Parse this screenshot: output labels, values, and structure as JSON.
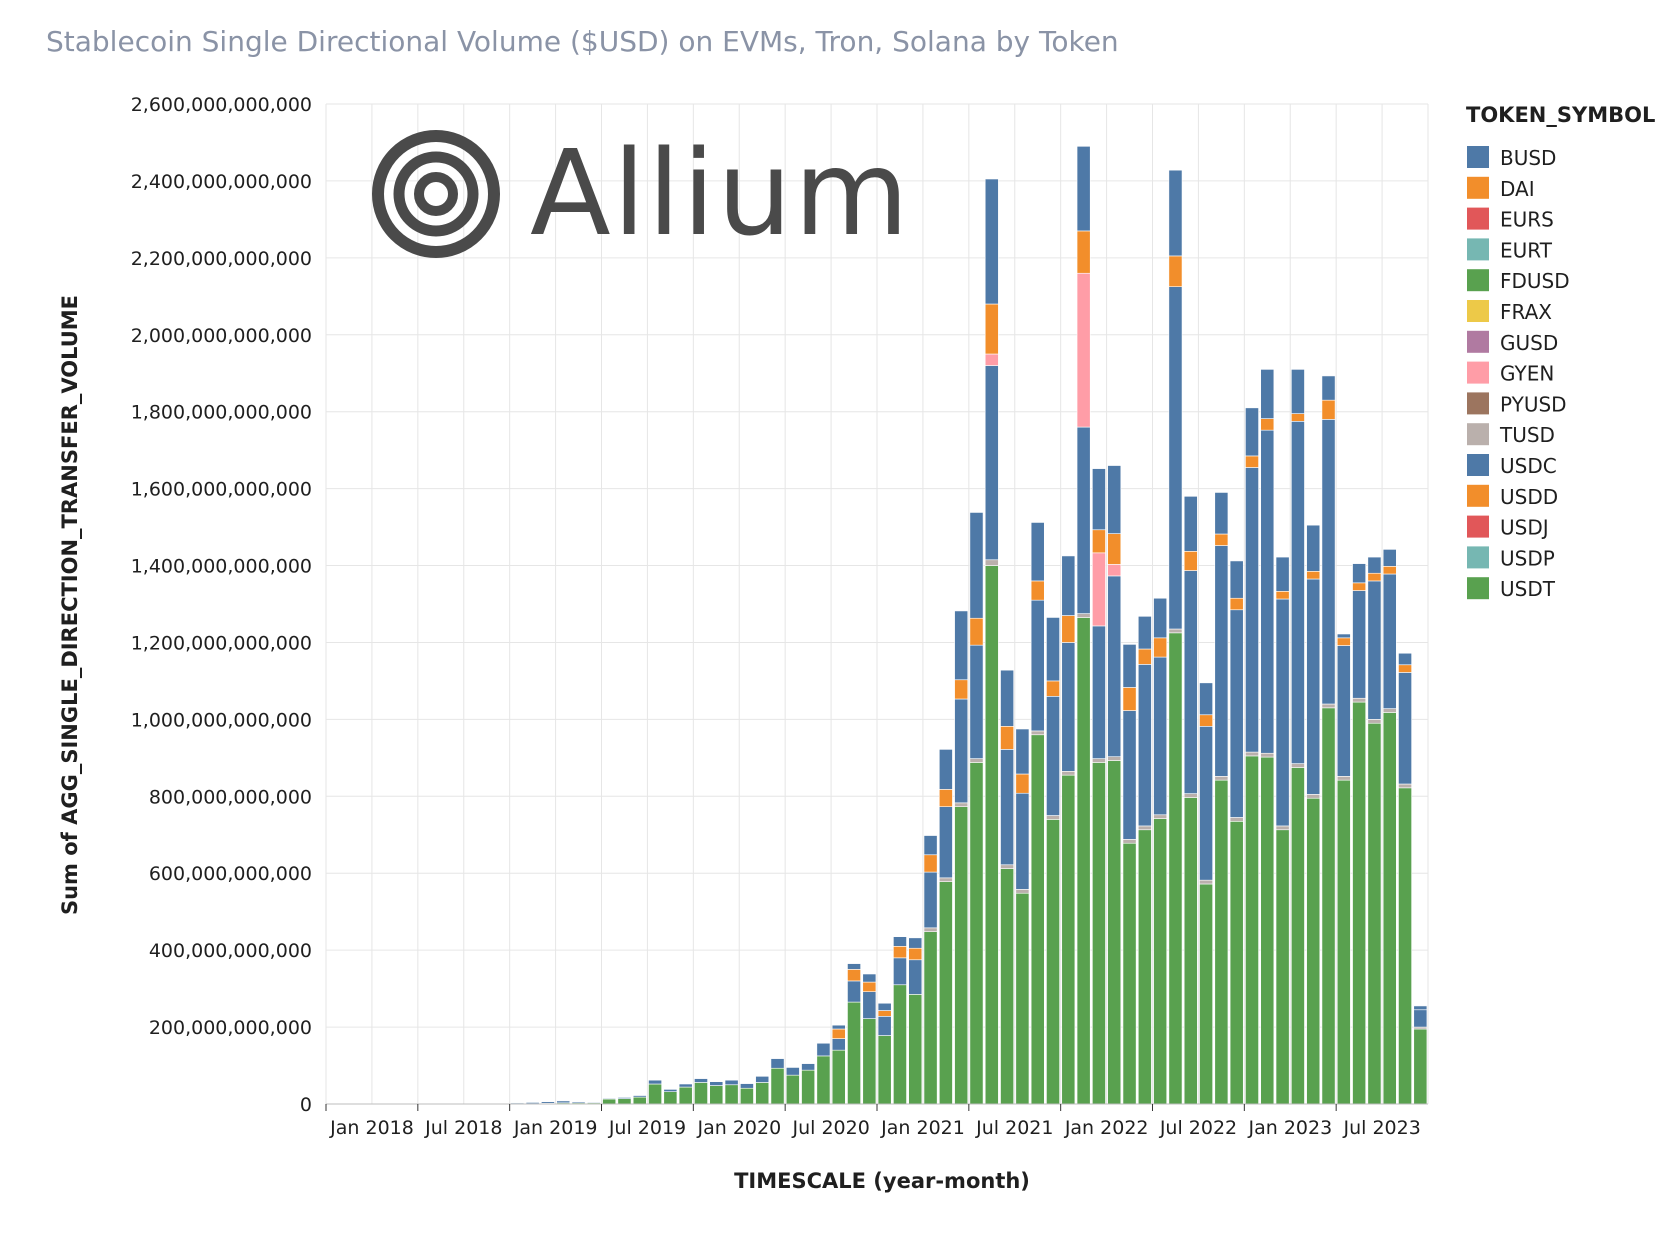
{
  "chart_data": {
    "type": "bar",
    "stacked": true,
    "title": "Stablecoin Single Directional Volume ($USD) on EVMs, Tron, Solana by Token",
    "xlabel": "TIMESCALE (year-month)",
    "ylabel": "Sum of AGG_SINGLE_DIRECTION_TRANSFER_VOLUME",
    "ylim": [
      0,
      2600000000000
    ],
    "grid": true,
    "legend_title": "TOKEN_SYMBOL",
    "legend_position": "right",
    "logo_text": "Allium",
    "x_start": "2018-01",
    "y_ticks": [
      {
        "value": 0,
        "label": "0"
      },
      {
        "value": 200000000000,
        "label": "200,000,000,000"
      },
      {
        "value": 400000000000,
        "label": "400,000,000,000"
      },
      {
        "value": 600000000000,
        "label": "600,000,000,000"
      },
      {
        "value": 800000000000,
        "label": "800,000,000,000"
      },
      {
        "value": 1000000000000,
        "label": "1,000,000,000,000"
      },
      {
        "value": 1200000000000,
        "label": "1,200,000,000,000"
      },
      {
        "value": 1400000000000,
        "label": "1,400,000,000,000"
      },
      {
        "value": 1600000000000,
        "label": "1,600,000,000,000"
      },
      {
        "value": 1800000000000,
        "label": "1,800,000,000,000"
      },
      {
        "value": 2000000000000,
        "label": "2,000,000,000,000"
      },
      {
        "value": 2200000000000,
        "label": "2,200,000,000,000"
      },
      {
        "value": 2400000000000,
        "label": "2,400,000,000,000"
      },
      {
        "value": 2600000000000,
        "label": "2,600,000,000,000"
      }
    ],
    "x_ticks": [
      {
        "month": "2018-01",
        "label": "Jan 2018"
      },
      {
        "month": "2018-07",
        "label": "Jul 2018"
      },
      {
        "month": "2019-01",
        "label": "Jan 2019"
      },
      {
        "month": "2019-07",
        "label": "Jul 2019"
      },
      {
        "month": "2020-01",
        "label": "Jan 2020"
      },
      {
        "month": "2020-07",
        "label": "Jul 2020"
      },
      {
        "month": "2021-01",
        "label": "Jan 2021"
      },
      {
        "month": "2021-07",
        "label": "Jul 2021"
      },
      {
        "month": "2022-01",
        "label": "Jan 2022"
      },
      {
        "month": "2022-07",
        "label": "Jul 2022"
      },
      {
        "month": "2023-01",
        "label": "Jan 2023"
      },
      {
        "month": "2023-07",
        "label": "Jul 2023"
      }
    ],
    "legend": [
      {
        "name": "BUSD",
        "color": "#4e79a7"
      },
      {
        "name": "DAI",
        "color": "#f28e2b"
      },
      {
        "name": "EURS",
        "color": "#e15759"
      },
      {
        "name": "EURT",
        "color": "#76b7b2"
      },
      {
        "name": "FDUSD",
        "color": "#59a14f"
      },
      {
        "name": "FRAX",
        "color": "#edc948"
      },
      {
        "name": "GUSD",
        "color": "#b07aa1"
      },
      {
        "name": "GYEN",
        "color": "#ff9da7"
      },
      {
        "name": "PYUSD",
        "color": "#9c755f"
      },
      {
        "name": "TUSD",
        "color": "#bab0ac"
      },
      {
        "name": "USDC",
        "color": "#4e79a7"
      },
      {
        "name": "USDD",
        "color": "#f28e2b"
      },
      {
        "name": "USDJ",
        "color": "#e15759"
      },
      {
        "name": "USDP",
        "color": "#76b7b2"
      },
      {
        "name": "USDT",
        "color": "#59a14f"
      }
    ],
    "stack_order": [
      "USDT",
      "TUSD",
      "USDC",
      "GYEN",
      "DAI"
    ],
    "stack_colors": {
      "USDT": "#59a14f",
      "TUSD": "#bab0ac",
      "USDC": "#4e79a7",
      "GYEN": "#ff9da7",
      "DAI": "#f28e2b"
    },
    "bars": [
      {
        "month": "2018-01",
        "total": 0,
        "USDT": 0
      },
      {
        "month": "2018-02",
        "total": 0,
        "USDT": 0
      },
      {
        "month": "2018-03",
        "total": 0,
        "USDT": 0
      },
      {
        "month": "2018-04",
        "total": 0,
        "USDT": 0
      },
      {
        "month": "2018-05",
        "total": 0,
        "USDT": 0
      },
      {
        "month": "2018-06",
        "total": 0,
        "USDT": 0
      },
      {
        "month": "2018-07",
        "total": 0,
        "USDT": 0
      },
      {
        "month": "2018-08",
        "total": 0,
        "USDT": 0
      },
      {
        "month": "2018-09",
        "total": 0,
        "USDT": 0
      },
      {
        "month": "2018-10",
        "total": 0,
        "USDT": 0
      },
      {
        "month": "2018-11",
        "total": 0,
        "USDT": 0
      },
      {
        "month": "2018-12",
        "total": 0,
        "USDT": 0
      },
      {
        "month": "2019-01",
        "total": 3000000000,
        "USDT": 1000000000
      },
      {
        "month": "2019-02",
        "total": 4000000000,
        "USDT": 1000000000
      },
      {
        "month": "2019-03",
        "total": 6000000000,
        "USDT": 2000000000
      },
      {
        "month": "2019-04",
        "total": 8000000000,
        "USDT": 3000000000
      },
      {
        "month": "2019-05",
        "total": 6000000000,
        "USDT": 3000000000
      },
      {
        "month": "2019-06",
        "total": 5000000000,
        "USDT": 3000000000
      },
      {
        "month": "2019-07",
        "total": 15000000000,
        "USDT": 13000000000
      },
      {
        "month": "2019-08",
        "total": 17000000000,
        "USDT": 14000000000
      },
      {
        "month": "2019-09",
        "total": 22000000000,
        "USDT": 18000000000
      },
      {
        "month": "2019-10",
        "total": 62000000000,
        "USDT": 52000000000
      },
      {
        "month": "2019-11",
        "total": 38000000000,
        "USDT": 32000000000
      },
      {
        "month": "2019-12",
        "total": 52000000000,
        "USDT": 44000000000
      },
      {
        "month": "2020-01",
        "total": 66000000000,
        "USDT": 56000000000
      },
      {
        "month": "2020-02",
        "total": 58000000000,
        "USDT": 48000000000
      },
      {
        "month": "2020-03",
        "total": 62000000000,
        "USDT": 50000000000
      },
      {
        "month": "2020-04",
        "total": 53000000000,
        "USDT": 41000000000
      },
      {
        "month": "2020-05",
        "total": 72000000000,
        "USDT": 56000000000
      },
      {
        "month": "2020-06",
        "total": 118000000000,
        "USDT": 93000000000
      },
      {
        "month": "2020-07",
        "total": 95000000000,
        "USDT": 75000000000
      },
      {
        "month": "2020-08",
        "total": 105000000000,
        "USDT": 88000000000
      },
      {
        "month": "2020-09",
        "total": 158000000000,
        "USDT": 125000000000
      },
      {
        "month": "2020-10",
        "total": 205000000000,
        "USDT": 140000000000,
        "USDC": 30000000000,
        "DAI": 25000000000
      },
      {
        "month": "2020-11",
        "total": 365000000000,
        "USDT": 265000000000,
        "USDC": 55000000000,
        "DAI": 30000000000
      },
      {
        "month": "2020-12",
        "total": 338000000000,
        "USDT": 222000000000,
        "USDC": 70000000000,
        "DAI": 25000000000
      },
      {
        "month": "2021-01",
        "total": 262000000000,
        "USDT": 178000000000,
        "USDC": 50000000000,
        "DAI": 15000000000
      },
      {
        "month": "2021-02",
        "total": 435000000000,
        "USDT": 310000000000,
        "USDC": 70000000000,
        "DAI": 30000000000
      },
      {
        "month": "2021-03",
        "total": 432000000000,
        "USDT": 285000000000,
        "USDC": 90000000000,
        "DAI": 30000000000
      },
      {
        "month": "2021-04",
        "total": 698000000000,
        "USDT": 448000000000,
        "TUSD": 10000000000,
        "USDC": 145000000000,
        "DAI": 45000000000
      },
      {
        "month": "2021-05",
        "total": 922000000000,
        "USDT": 578000000000,
        "TUSD": 10000000000,
        "USDC": 185000000000,
        "DAI": 45000000000
      },
      {
        "month": "2021-06",
        "total": 1282000000000,
        "USDT": 773000000000,
        "TUSD": 10000000000,
        "USDC": 270000000000,
        "DAI": 50000000000
      },
      {
        "month": "2021-07",
        "total": 1538000000000,
        "USDT": 888000000000,
        "TUSD": 10000000000,
        "USDC": 295000000000,
        "DAI": 70000000000
      },
      {
        "month": "2021-08",
        "total": 2405000000000,
        "USDT": 1400000000000,
        "TUSD": 15000000000,
        "USDC": 505000000000,
        "GYEN": 30000000000,
        "DAI": 130000000000
      },
      {
        "month": "2021-09",
        "total": 1128000000000,
        "USDT": 612000000000,
        "TUSD": 10000000000,
        "USDC": 300000000000,
        "DAI": 60000000000
      },
      {
        "month": "2021-10",
        "total": 975000000000,
        "USDT": 548000000000,
        "TUSD": 10000000000,
        "USDC": 250000000000,
        "DAI": 50000000000
      },
      {
        "month": "2021-11",
        "total": 1512000000000,
        "USDT": 960000000000,
        "TUSD": 10000000000,
        "USDC": 340000000000,
        "DAI": 50000000000
      },
      {
        "month": "2021-12",
        "total": 1265000000000,
        "USDT": 740000000000,
        "TUSD": 10000000000,
        "USDC": 310000000000,
        "DAI": 40000000000
      },
      {
        "month": "2022-01",
        "total": 1425000000000,
        "USDT": 855000000000,
        "TUSD": 10000000000,
        "USDC": 335000000000,
        "DAI": 70000000000
      },
      {
        "month": "2022-02",
        "total": 2490000000000,
        "USDT": 1265000000000,
        "TUSD": 10000000000,
        "USDC": 485000000000,
        "GYEN": 400000000000,
        "DAI": 110000000000
      },
      {
        "month": "2022-03",
        "total": 1652000000000,
        "USDT": 888000000000,
        "TUSD": 10000000000,
        "USDC": 345000000000,
        "GYEN": 190000000000,
        "DAI": 60000000000
      },
      {
        "month": "2022-04",
        "total": 1660000000000,
        "USDT": 893000000000,
        "TUSD": 10000000000,
        "USDC": 470000000000,
        "GYEN": 30000000000,
        "DAI": 80000000000
      },
      {
        "month": "2022-05",
        "total": 1195000000000,
        "USDT": 678000000000,
        "TUSD": 10000000000,
        "USDC": 335000000000,
        "DAI": 60000000000
      },
      {
        "month": "2022-06",
        "total": 1268000000000,
        "USDT": 713000000000,
        "TUSD": 10000000000,
        "USDC": 420000000000,
        "DAI": 40000000000
      },
      {
        "month": "2022-07",
        "total": 1315000000000,
        "USDT": 742000000000,
        "TUSD": 10000000000,
        "USDC": 410000000000,
        "DAI": 50000000000
      },
      {
        "month": "2022-08",
        "total": 2428000000000,
        "USDT": 1225000000000,
        "TUSD": 10000000000,
        "USDC": 890000000000,
        "DAI": 80000000000
      },
      {
        "month": "2022-09",
        "total": 1580000000000,
        "USDT": 797000000000,
        "TUSD": 10000000000,
        "USDC": 580000000000,
        "DAI": 50000000000
      },
      {
        "month": "2022-10",
        "total": 1095000000000,
        "USDT": 572000000000,
        "TUSD": 10000000000,
        "USDC": 400000000000,
        "DAI": 30000000000
      },
      {
        "month": "2022-11",
        "total": 1590000000000,
        "USDT": 842000000000,
        "TUSD": 10000000000,
        "USDC": 600000000000,
        "DAI": 30000000000
      },
      {
        "month": "2022-12",
        "total": 1412000000000,
        "USDT": 735000000000,
        "TUSD": 10000000000,
        "USDC": 540000000000,
        "DAI": 30000000000
      },
      {
        "month": "2023-01",
        "total": 1810000000000,
        "USDT": 905000000000,
        "TUSD": 10000000000,
        "USDC": 740000000000,
        "DAI": 30000000000
      },
      {
        "month": "2023-02",
        "total": 1910000000000,
        "USDT": 902000000000,
        "TUSD": 10000000000,
        "USDC": 840000000000,
        "DAI": 30000000000
      },
      {
        "month": "2023-03",
        "total": 1422000000000,
        "USDT": 713000000000,
        "TUSD": 10000000000,
        "USDC": 590000000000,
        "DAI": 20000000000
      },
      {
        "month": "2023-04",
        "total": 1910000000000,
        "USDT": 875000000000,
        "TUSD": 10000000000,
        "USDC": 890000000000,
        "DAI": 20000000000
      },
      {
        "month": "2023-05",
        "total": 1505000000000,
        "USDT": 795000000000,
        "TUSD": 10000000000,
        "USDC": 560000000000,
        "DAI": 20000000000
      },
      {
        "month": "2023-06",
        "total": 1893000000000,
        "USDT": 1030000000000,
        "TUSD": 10000000000,
        "USDC": 740000000000,
        "DAI": 50000000000
      },
      {
        "month": "2023-07",
        "total": 1222000000000,
        "USDT": 842000000000,
        "TUSD": 10000000000,
        "USDC": 340000000000,
        "DAI": 20000000000
      },
      {
        "month": "2023-08",
        "total": 1405000000000,
        "USDT": 1045000000000,
        "TUSD": 10000000000,
        "USDC": 280000000000,
        "DAI": 20000000000
      },
      {
        "month": "2023-09",
        "total": 1422000000000,
        "USDT": 990000000000,
        "TUSD": 10000000000,
        "USDC": 360000000000,
        "DAI": 20000000000
      },
      {
        "month": "2023-10",
        "total": 1442000000000,
        "USDT": 1018000000000,
        "TUSD": 10000000000,
        "USDC": 350000000000,
        "DAI": 20000000000
      },
      {
        "month": "2023-11",
        "total": 1172000000000,
        "USDT": 822000000000,
        "TUSD": 10000000000,
        "USDC": 290000000000,
        "DAI": 20000000000
      },
      {
        "month": "2023-12",
        "total": 255000000000,
        "USDT": 195000000000,
        "TUSD": 5000000000,
        "USDC": 45000000000
      }
    ]
  }
}
